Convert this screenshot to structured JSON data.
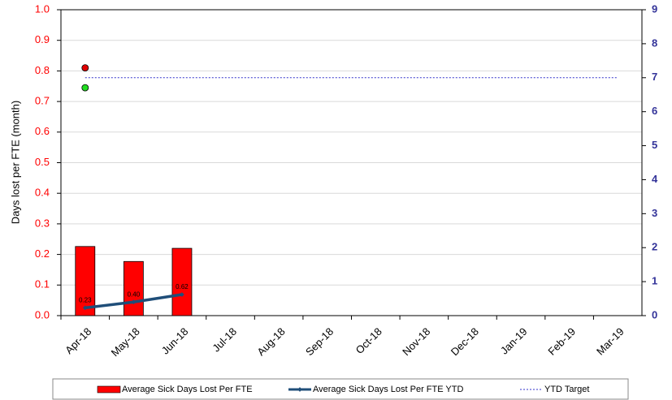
{
  "chart_data": {
    "type": "bar",
    "ylabel": "Days lost per FTE (month)",
    "categories": [
      "Apr-18",
      "May-18",
      "Jun-18",
      "Jul-18",
      "Aug-18",
      "Sep-18",
      "Oct-18",
      "Nov-18",
      "Dec-18",
      "Jan-19",
      "Feb-19",
      "Mar-19"
    ],
    "series": [
      {
        "name": "Average Sick Days Lost Per FTE",
        "type": "bar",
        "color": "#ff0000",
        "values": [
          0.226,
          0.177,
          0.22,
          null,
          null,
          null,
          null,
          null,
          null,
          null,
          null,
          null
        ]
      },
      {
        "name": "Average Sick Days Lost Per FTE YTD",
        "type": "line",
        "axis": "y2",
        "color": "#1f4e79",
        "values": [
          0.23,
          0.4,
          0.62,
          null,
          null,
          null,
          null,
          null,
          null,
          null,
          null,
          null
        ],
        "value_labels": [
          "0.23",
          "0.40",
          "0.62",
          null,
          null,
          null,
          null,
          null,
          null,
          null,
          null,
          null
        ]
      },
      {
        "name": "YTD Target",
        "type": "dashed",
        "axis": "y2",
        "color": "#3333cc",
        "values": [
          7,
          7,
          7,
          7,
          7,
          7,
          7,
          7,
          7,
          7,
          7,
          7
        ]
      }
    ],
    "markers": [
      {
        "value": 0.81,
        "color": "#e00000"
      },
      {
        "value": 0.745,
        "color": "#22dd22"
      }
    ],
    "ylim": [
      0,
      1
    ],
    "yticks": [
      {
        "value": 0,
        "label": "0.0"
      },
      0.1,
      0.2,
      0.3,
      0.4,
      0.5,
      0.6,
      0.7,
      0.8,
      0.9,
      {
        "value": 1,
        "label": "1.0"
      }
    ],
    "y2lim": [
      0,
      9
    ],
    "y2ticks": [
      0,
      1,
      2,
      3,
      4,
      5,
      6,
      7,
      8,
      9
    ],
    "grid": true,
    "legend": "bottom"
  }
}
